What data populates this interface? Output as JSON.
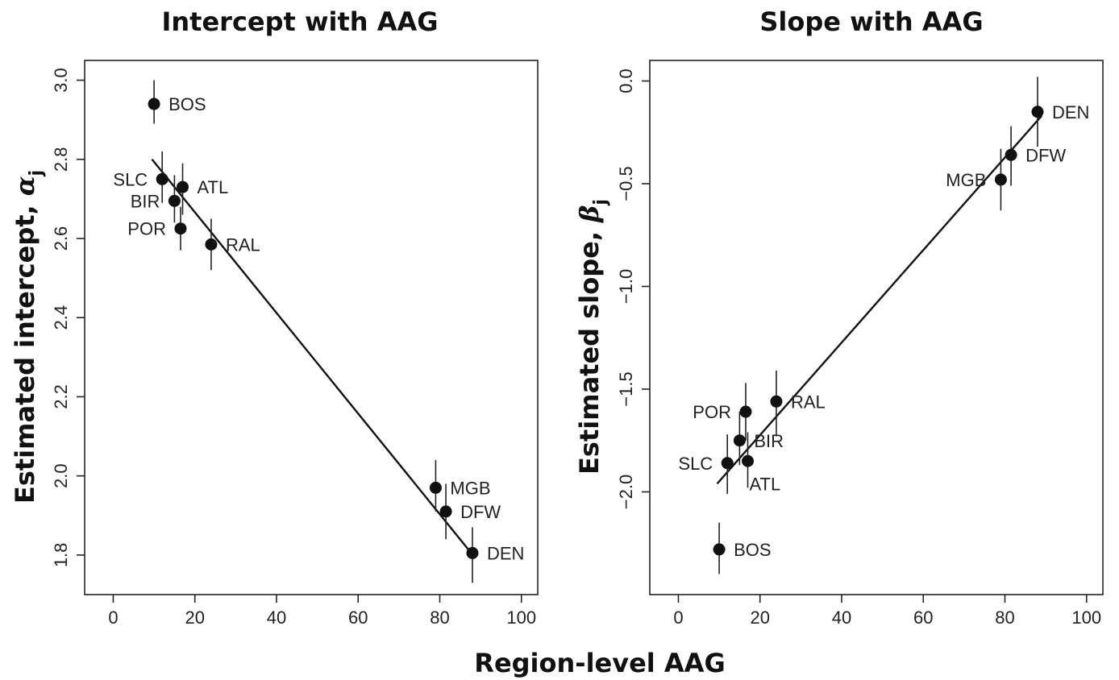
{
  "figure": {
    "xlabel": "Region-level AAG"
  },
  "chart_data": [
    {
      "type": "scatter",
      "title": "Intercept with AAG",
      "xlabel": "Region-level AAG",
      "ylabel_main": "Estimated intercept, ",
      "ylabel_symbol": "α",
      "ylabel_sub": "j",
      "xlim": [
        -7,
        104
      ],
      "ylim": [
        1.7,
        3.05
      ],
      "xticks": [
        0,
        20,
        40,
        60,
        80,
        100
      ],
      "yticks": [
        1.8,
        2.0,
        2.2,
        2.4,
        2.6,
        2.8,
        3.0
      ],
      "ytick_labels": [
        "1.8",
        "2.0",
        "2.2",
        "2.4",
        "2.6",
        "2.8",
        "3.0"
      ],
      "grid": false,
      "points": [
        {
          "label": "BOS",
          "x": 10,
          "y": 2.94,
          "err_low": 2.89,
          "err_high": 3.0,
          "label_side": "right"
        },
        {
          "label": "SLC",
          "x": 12,
          "y": 2.75,
          "err_low": 2.69,
          "err_high": 2.82,
          "label_side": "left"
        },
        {
          "label": "ATL",
          "x": 17,
          "y": 2.73,
          "err_low": 2.66,
          "err_high": 2.79,
          "label_side": "right"
        },
        {
          "label": "BIR",
          "x": 15,
          "y": 2.695,
          "err_low": 2.64,
          "err_high": 2.76,
          "label_side": "left"
        },
        {
          "label": "POR",
          "x": 16.5,
          "y": 2.625,
          "err_low": 2.57,
          "err_high": 2.68,
          "label_side": "left"
        },
        {
          "label": "RAL",
          "x": 24,
          "y": 2.585,
          "err_low": 2.52,
          "err_high": 2.65,
          "label_side": "right"
        },
        {
          "label": "MGB",
          "x": 79,
          "y": 1.97,
          "err_low": 1.91,
          "err_high": 2.04,
          "label_side": "right"
        },
        {
          "label": "DFW",
          "x": 81.5,
          "y": 1.91,
          "err_low": 1.84,
          "err_high": 1.98,
          "label_side": "right"
        },
        {
          "label": "DEN",
          "x": 88,
          "y": 1.805,
          "err_low": 1.73,
          "err_high": 1.87,
          "label_side": "right"
        }
      ],
      "fit_line": {
        "x": [
          9.5,
          88.5
        ],
        "y": [
          2.8,
          1.795
        ]
      }
    },
    {
      "type": "scatter",
      "title": "Slope with AAG",
      "xlabel": "Region-level AAG",
      "ylabel_main": "Estimated slope, ",
      "ylabel_symbol": "β",
      "ylabel_sub": "j",
      "xlim": [
        -7,
        104
      ],
      "ylim": [
        -2.5,
        0.1
      ],
      "xticks": [
        0,
        20,
        40,
        60,
        80,
        100
      ],
      "yticks": [
        -2.0,
        -1.5,
        -1.0,
        -0.5,
        0.0
      ],
      "ytick_labels": [
        "−2.0",
        "−1.5",
        "−1.0",
        "−0.5",
        "0.0"
      ],
      "grid": false,
      "points": [
        {
          "label": "DEN",
          "x": 88,
          "y": -0.15,
          "err_low": -0.32,
          "err_high": 0.02,
          "label_side": "right"
        },
        {
          "label": "DFW",
          "x": 81.5,
          "y": -0.36,
          "err_low": -0.51,
          "err_high": -0.22,
          "label_side": "right"
        },
        {
          "label": "MGB",
          "x": 79,
          "y": -0.48,
          "err_low": -0.63,
          "err_high": -0.33,
          "label_side": "left"
        },
        {
          "label": "RAL",
          "x": 24,
          "y": -1.56,
          "err_low": -1.73,
          "err_high": -1.41,
          "label_side": "right"
        },
        {
          "label": "POR",
          "x": 16.5,
          "y": -1.61,
          "err_low": -1.75,
          "err_high": -1.47,
          "label_side": "left"
        },
        {
          "label": "BIR",
          "x": 15,
          "y": -1.75,
          "err_low": -1.87,
          "err_high": -1.61,
          "label_side": "right"
        },
        {
          "label": "SLC",
          "x": 12,
          "y": -1.86,
          "err_low": -2.01,
          "err_high": -1.72,
          "label_side": "left"
        },
        {
          "label": "ATL",
          "x": 17,
          "y": -1.85,
          "err_low": -1.98,
          "err_high": -1.71,
          "label_side": "below"
        },
        {
          "label": "BOS",
          "x": 10,
          "y": -2.28,
          "err_low": -2.4,
          "err_high": -2.15,
          "label_side": "right"
        }
      ],
      "fit_line": {
        "x": [
          9.5,
          89
        ],
        "y": [
          -1.96,
          -0.17
        ]
      }
    }
  ]
}
